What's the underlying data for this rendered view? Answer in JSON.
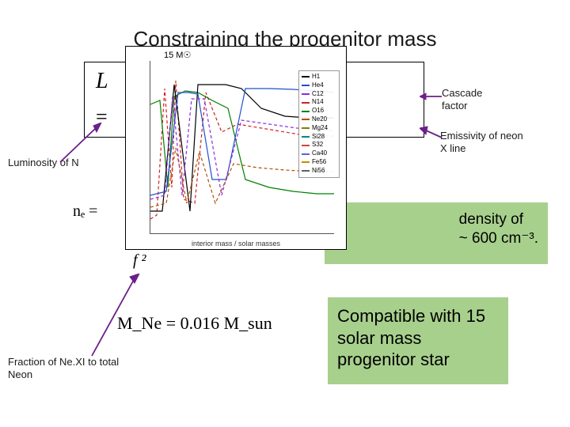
{
  "title": "Constraining the progenitor mass",
  "labels": {
    "cascade": "Cascade factor",
    "emissivity": "Emissivity of neon X line",
    "luminosity": "Luminosity of N",
    "fraction": "Fraction of Ne.XI to total Neon"
  },
  "formula_box": {
    "line1": "L",
    "line2": "="
  },
  "math": {
    "ne_eq": "nₑ = ",
    "f2": "f ²",
    "mne_eq": "M_Ne = 0.016 M_sun"
  },
  "green1_prefix_hidden": "density of",
  "green1_suffix_hidden": "~ 600 cm⁻³.",
  "green1": " density of\n~ 600 cm⁻³.",
  "green2": "Compatible with 15 solar mass progenitor star",
  "chart": {
    "title": "15 M☉",
    "x_axis_label": "interior mass / solar masses",
    "background_color": "#ffffff",
    "axis_color": "#555555",
    "line_width": 1.2,
    "xlim": [
      0,
      15
    ],
    "legend_border": "#999999",
    "series": [
      {
        "label": "H1",
        "color": "#000000",
        "dash": "none"
      },
      {
        "label": "He4",
        "color": "#2050d0",
        "dash": "none"
      },
      {
        "label": "C12",
        "color": "#8a2be2",
        "dash": "4,3"
      },
      {
        "label": "N14",
        "color": "#d02020",
        "dash": "4,3"
      },
      {
        "label": "O16",
        "color": "#008000",
        "dash": "none"
      },
      {
        "label": "Ne20",
        "color": "#b05000",
        "dash": "4,3"
      },
      {
        "label": "Mg24",
        "color": "#808000",
        "dash": "3,2"
      },
      {
        "label": "Si28",
        "color": "#008888",
        "dash": "none"
      },
      {
        "label": "S32",
        "color": "#d04040",
        "dash": "4,3"
      },
      {
        "label": "Ca40",
        "color": "#6060e0",
        "dash": "2,2"
      },
      {
        "label": "Fe56",
        "color": "#cc8800",
        "dash": "none"
      },
      {
        "label": "Ni56",
        "color": "#606060",
        "dash": "3,2"
      }
    ],
    "curves": [
      {
        "series": 3,
        "points": [
          [
            0,
            200
          ],
          [
            8,
            195
          ],
          [
            18,
            35
          ],
          [
            27,
            160
          ],
          [
            32,
            25
          ],
          [
            42,
            175
          ],
          [
            56,
            180
          ],
          [
            70,
            40
          ],
          [
            90,
            90
          ],
          [
            110,
            80
          ],
          [
            140,
            85
          ],
          [
            170,
            90
          ],
          [
            200,
            95
          ],
          [
            232,
            95
          ]
        ]
      },
      {
        "series": 4,
        "points": [
          [
            0,
            55
          ],
          [
            12,
            50
          ],
          [
            22,
            160
          ],
          [
            30,
            45
          ],
          [
            44,
            38
          ],
          [
            60,
            40
          ],
          [
            78,
            50
          ],
          [
            98,
            60
          ],
          [
            120,
            150
          ],
          [
            150,
            160
          ],
          [
            180,
            165
          ],
          [
            210,
            168
          ],
          [
            232,
            168
          ]
        ]
      },
      {
        "series": 0,
        "points": [
          [
            0,
            190
          ],
          [
            15,
            190
          ],
          [
            30,
            30
          ],
          [
            50,
            190
          ],
          [
            60,
            30
          ],
          [
            75,
            30
          ],
          [
            95,
            30
          ],
          [
            115,
            35
          ],
          [
            140,
            60
          ],
          [
            170,
            70
          ],
          [
            200,
            72
          ],
          [
            232,
            72
          ]
        ]
      },
      {
        "series": 1,
        "points": [
          [
            0,
            170
          ],
          [
            20,
            165
          ],
          [
            35,
            40
          ],
          [
            48,
            40
          ],
          [
            60,
            42
          ],
          [
            78,
            150
          ],
          [
            96,
            150
          ],
          [
            120,
            35
          ],
          [
            150,
            35
          ],
          [
            180,
            36
          ],
          [
            210,
            38
          ],
          [
            232,
            40
          ]
        ]
      },
      {
        "series": 2,
        "points": [
          [
            0,
            175
          ],
          [
            18,
            170
          ],
          [
            28,
            45
          ],
          [
            40,
            170
          ],
          [
            52,
            48
          ],
          [
            68,
            48
          ],
          [
            90,
            170
          ],
          [
            115,
            75
          ],
          [
            150,
            80
          ],
          [
            185,
            85
          ],
          [
            232,
            88
          ]
        ]
      },
      {
        "series": 5,
        "points": [
          [
            0,
            185
          ],
          [
            20,
            180
          ],
          [
            32,
            110
          ],
          [
            46,
            180
          ],
          [
            62,
            115
          ],
          [
            82,
            180
          ],
          [
            105,
            130
          ],
          [
            135,
            135
          ],
          [
            170,
            138
          ],
          [
            205,
            140
          ],
          [
            232,
            140
          ]
        ]
      }
    ]
  },
  "arrows": {
    "color": "#6b1f8a",
    "stroke_width": 1.8
  }
}
